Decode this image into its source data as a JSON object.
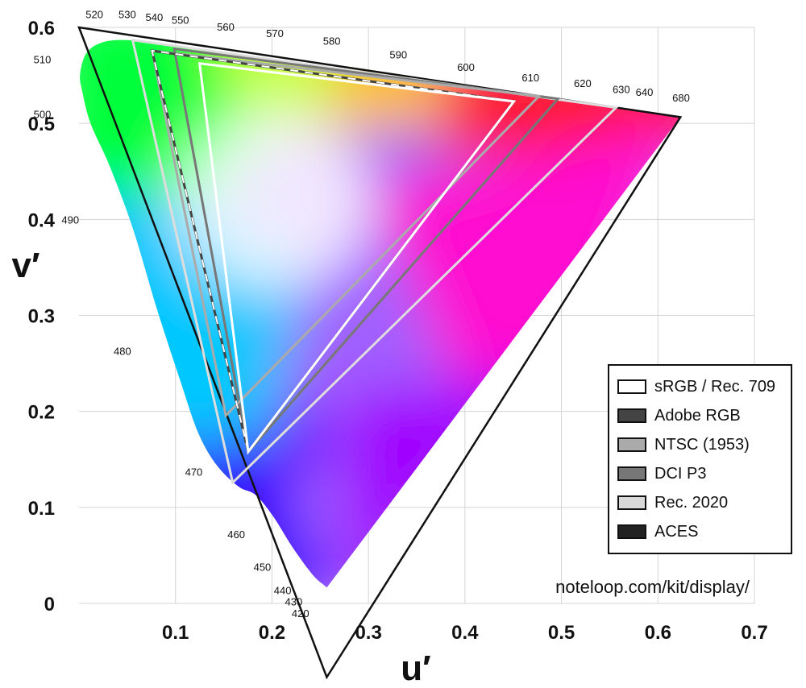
{
  "chart_data": {
    "type": "chromaticity-diagram",
    "xlabel": "u′",
    "ylabel": "v′",
    "xlim": [
      0,
      0.7
    ],
    "ylim": [
      0,
      0.6
    ],
    "x_ticks": [
      0.1,
      0.2,
      0.3,
      0.4,
      0.5,
      0.6,
      0.7
    ],
    "x_tick_labels": [
      "0.1",
      "0.2",
      "0.3",
      "0.4",
      "0.5",
      "0.6",
      "0.7"
    ],
    "y_ticks": [
      0,
      0.1,
      0.2,
      0.3,
      0.4,
      0.5,
      0.6
    ],
    "y_tick_labels": [
      "0",
      "0.1",
      "0.2",
      "0.3",
      "0.4",
      "0.5",
      "0.6"
    ],
    "grid": true,
    "legend_position": "bottom-right",
    "spectral_locus": [
      [
        0.2568,
        0.0165
      ],
      [
        0.2565,
        0.017
      ],
      [
        0.2557,
        0.0175
      ],
      [
        0.254,
        0.019
      ],
      [
        0.242,
        0.03
      ],
      [
        0.221,
        0.059
      ],
      [
        0.201,
        0.091
      ],
      [
        0.183,
        0.113
      ],
      [
        0.165,
        0.122
      ],
      [
        0.142,
        0.145
      ],
      [
        0.123,
        0.179
      ],
      [
        0.104,
        0.235
      ],
      [
        0.081,
        0.306
      ],
      [
        0.056,
        0.39
      ],
      [
        0.032,
        0.455
      ],
      [
        0.012,
        0.5
      ],
      [
        0.003,
        0.535
      ],
      [
        0.001,
        0.55
      ],
      [
        0.005,
        0.568
      ],
      [
        0.012,
        0.578
      ],
      [
        0.023,
        0.584
      ],
      [
        0.035,
        0.5865
      ],
      [
        0.05,
        0.5868
      ],
      [
        0.07,
        0.585
      ],
      [
        0.11,
        0.58
      ],
      [
        0.16,
        0.572
      ],
      [
        0.2,
        0.567
      ],
      [
        0.25,
        0.56
      ],
      [
        0.3,
        0.554
      ],
      [
        0.35,
        0.547
      ],
      [
        0.4,
        0.54
      ],
      [
        0.45,
        0.533
      ],
      [
        0.5,
        0.526
      ],
      [
        0.55,
        0.517
      ],
      [
        0.59,
        0.511
      ],
      [
        0.6233,
        0.5065
      ]
    ],
    "wavelength_labels": [
      {
        "nm": "420",
        "u": 0.2295,
        "v": -0.01
      },
      {
        "nm": "430",
        "u": 0.2225,
        "v": 0.002
      },
      {
        "nm": "440",
        "u": 0.211,
        "v": 0.014
      },
      {
        "nm": "450",
        "u": 0.19,
        "v": 0.038
      },
      {
        "nm": "460",
        "u": 0.163,
        "v": 0.072
      },
      {
        "nm": "470",
        "u": 0.119,
        "v": 0.137
      },
      {
        "nm": "480",
        "u": 0.045,
        "v": 0.263
      },
      {
        "nm": "490",
        "u": -0.009,
        "v": 0.4
      },
      {
        "nm": "500",
        "u": -0.038,
        "v": 0.51
      },
      {
        "nm": "510",
        "u": -0.038,
        "v": 0.567
      },
      {
        "nm": "520",
        "u": 0.016,
        "v": 0.614
      },
      {
        "nm": "530",
        "u": 0.05,
        "v": 0.614
      },
      {
        "nm": "540",
        "u": 0.078,
        "v": 0.611
      },
      {
        "nm": "550",
        "u": 0.105,
        "v": 0.608
      },
      {
        "nm": "560",
        "u": 0.152,
        "v": 0.601
      },
      {
        "nm": "570",
        "u": 0.203,
        "v": 0.594
      },
      {
        "nm": "580",
        "u": 0.262,
        "v": 0.586
      },
      {
        "nm": "590",
        "u": 0.331,
        "v": 0.572
      },
      {
        "nm": "600",
        "u": 0.401,
        "v": 0.559
      },
      {
        "nm": "610",
        "u": 0.468,
        "v": 0.548
      },
      {
        "nm": "620",
        "u": 0.522,
        "v": 0.542
      },
      {
        "nm": "630",
        "u": 0.562,
        "v": 0.536
      },
      {
        "nm": "640",
        "u": 0.586,
        "v": 0.533
      },
      {
        "nm": "680",
        "u": 0.624,
        "v": 0.527
      }
    ],
    "gamuts": [
      {
        "name": "sRGB / Rec. 709",
        "primaries": [
          [
            0.4507,
            0.5229
          ],
          [
            0.125,
            0.5625
          ],
          [
            0.1754,
            0.1579
          ]
        ],
        "stroke": "#ffffff",
        "swatch": "#ffffff",
        "dashed": false
      },
      {
        "name": "Adobe RGB",
        "primaries": [
          [
            0.4507,
            0.5229
          ],
          [
            0.0757,
            0.5757
          ],
          [
            0.1754,
            0.1579
          ]
        ],
        "stroke": "#444444",
        "swatch": "#444444",
        "dashed": true
      },
      {
        "name": "NTSC (1953)",
        "primaries": [
          [
            0.4769,
            0.5285
          ],
          [
            0.0757,
            0.5757
          ],
          [
            0.1522,
            0.1957
          ]
        ],
        "stroke": "#aaaaaa",
        "swatch": "#aaaaaa",
        "dashed": false
      },
      {
        "name": "DCI P3",
        "primaries": [
          [
            0.4964,
            0.5256
          ],
          [
            0.0987,
            0.5777
          ],
          [
            0.1754,
            0.1579
          ]
        ],
        "stroke": "#777777",
        "swatch": "#777777",
        "dashed": false
      },
      {
        "name": "Rec. 2020",
        "primaries": [
          [
            0.5566,
            0.5165
          ],
          [
            0.0556,
            0.5868
          ],
          [
            0.1593,
            0.1258
          ]
        ],
        "stroke": "#dddddd",
        "swatch": "#d9d9d9",
        "dashed": false
      },
      {
        "name": "ACES",
        "primaries": [
          [
            0.6233,
            0.5065
          ],
          [
            0.0,
            0.6
          ],
          [
            0.2568,
            -0.0769
          ]
        ],
        "stroke": "#111111",
        "swatch": "#222222",
        "dashed": false
      }
    ]
  },
  "credit": "noteloop.com/kit/display/",
  "colors": {
    "grid": "#d4d4d4",
    "axis_text": "#111111",
    "border": "#111111"
  }
}
